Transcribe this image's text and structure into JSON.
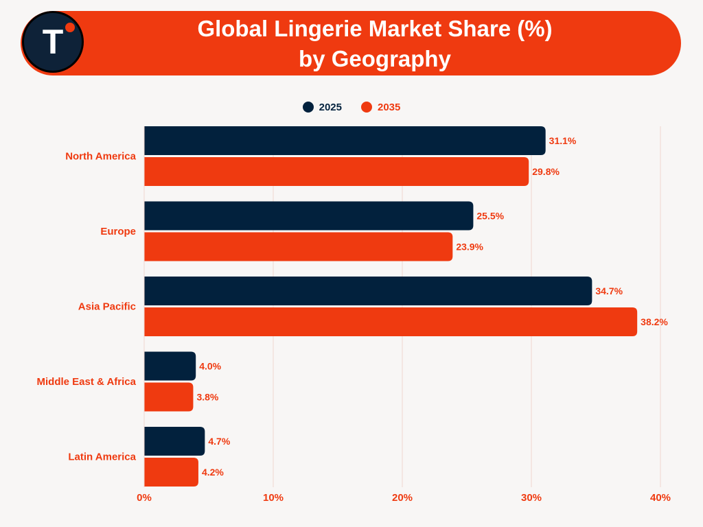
{
  "header": {
    "logo_letter": "T",
    "title_line1": "Global Lingerie Market Share (%)",
    "title_line2": "by Geography"
  },
  "colors": {
    "accent": "#ef3a10",
    "navy": "#0e2238",
    "series_2025": "#02213d",
    "series_2035": "#ef3a10",
    "grid": "#f1d6d0",
    "background": "#f8f6f5"
  },
  "chart_data": {
    "type": "bar",
    "orientation": "horizontal",
    "title": "Global Lingerie Market Share (%) by Geography",
    "categories": [
      "North America",
      "Europe",
      "Asia Pacific",
      "Middle East & Africa",
      "Latin America"
    ],
    "series": [
      {
        "name": "2025",
        "values": [
          31.1,
          25.5,
          34.7,
          4.0,
          4.7
        ]
      },
      {
        "name": "2035",
        "values": [
          29.8,
          23.9,
          38.2,
          3.8,
          4.2
        ]
      }
    ],
    "value_labels": [
      [
        "31.1%",
        "25.5%",
        "34.7%",
        "4.0%",
        "4.7%"
      ],
      [
        "29.8%",
        "23.9%",
        "38.2%",
        "3.8%",
        "4.2%"
      ]
    ],
    "xlim": [
      0,
      40
    ],
    "xticks": [
      0,
      10,
      20,
      30,
      40
    ],
    "xtick_labels": [
      "0%",
      "10%",
      "20%",
      "30%",
      "40%"
    ],
    "xlabel": "",
    "ylabel": "",
    "grid": true,
    "legend_position": "top-center"
  }
}
